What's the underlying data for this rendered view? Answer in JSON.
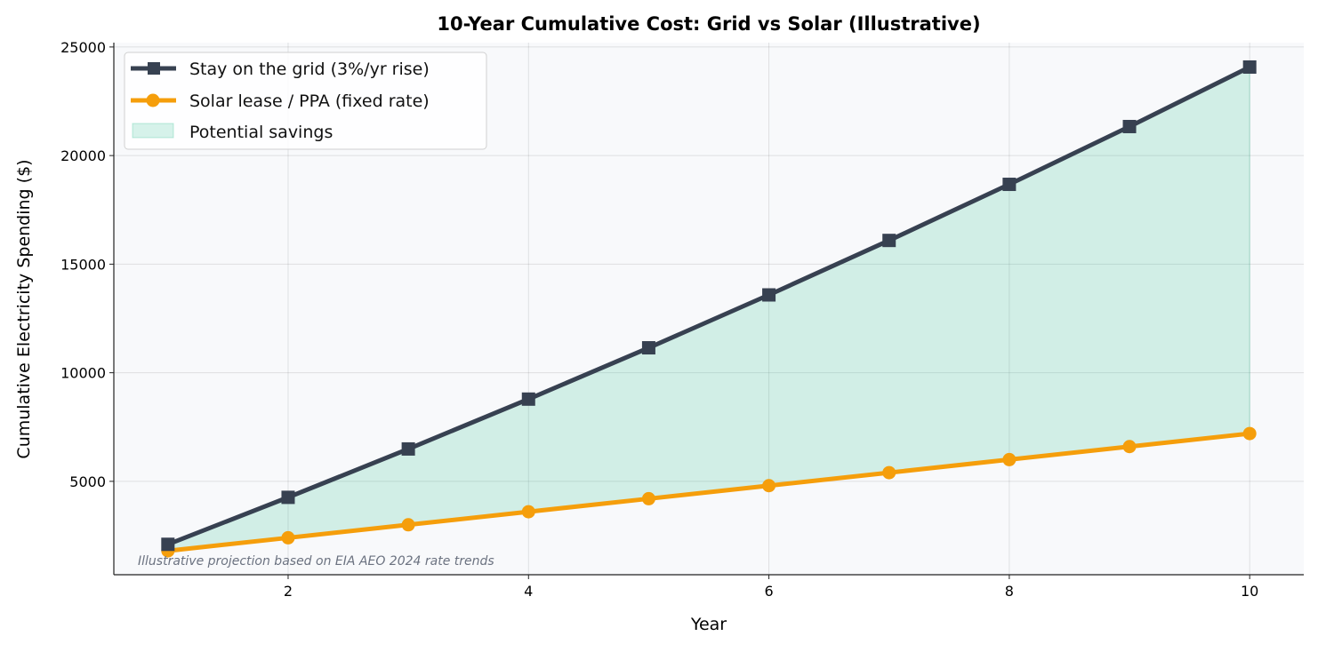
{
  "chart_data": {
    "type": "line",
    "title": "10-Year Cumulative Cost: Grid vs Solar (Illustrative)",
    "xlabel": "Year",
    "ylabel": "Cumulative Electricity Spending ($)",
    "x": [
      1,
      2,
      3,
      4,
      5,
      6,
      7,
      8,
      9,
      10
    ],
    "xlim": [
      0.55,
      10.45
    ],
    "ylim": [
      700,
      25200
    ],
    "xticks": [
      2,
      4,
      6,
      8,
      10
    ],
    "yticks": [
      5000,
      10000,
      15000,
      20000,
      25000
    ],
    "grid": true,
    "legend_placement": "top-left",
    "series": [
      {
        "name": "Stay on the grid (3%/yr rise)",
        "color": "#374151",
        "marker": "square",
        "values": [
          2100,
          4263,
          6491,
          8786,
          11149,
          13584,
          16092,
          18675,
          21336,
          24076
        ]
      },
      {
        "name": "Solar lease / PPA (fixed rate)",
        "color": "#f59e0b",
        "marker": "circle",
        "values": [
          1800,
          2400,
          3000,
          3600,
          4200,
          4800,
          5400,
          6000,
          6600,
          7200
        ]
      }
    ],
    "fill": {
      "name": "Potential savings",
      "color": "#10b981"
    },
    "annotation": "Illustrative projection based on EIA AEO 2024 rate trends"
  }
}
